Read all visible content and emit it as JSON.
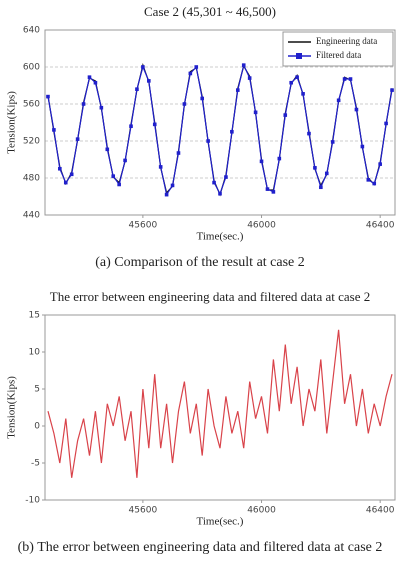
{
  "chart_data": [
    {
      "type": "line",
      "title": "Case 2 (45,301 ~ 46,500)",
      "caption": "(a)  Comparison of the result at case 2",
      "x_label": "Time(sec.)",
      "y_label": "Tension(Kips)",
      "x": [
        45280,
        45300,
        45320,
        45340,
        45360,
        45380,
        45400,
        45420,
        45440,
        45460,
        45480,
        45500,
        45520,
        45540,
        45560,
        45580,
        45600,
        45620,
        45640,
        45660,
        45680,
        45700,
        45720,
        45740,
        45760,
        45780,
        45800,
        45820,
        45840,
        45860,
        45880,
        45900,
        45920,
        45940,
        45960,
        45980,
        46000,
        46020,
        46040,
        46060,
        46080,
        46100,
        46120,
        46140,
        46160,
        46180,
        46200,
        46220,
        46240,
        46260,
        46280,
        46300,
        46320,
        46340,
        46360,
        46380,
        46400,
        46420,
        46440
      ],
      "series": [
        {
          "name": "Engineering data",
          "color": "#111111",
          "marker": "none",
          "values": [
            569,
            530,
            492,
            474,
            486,
            521,
            562,
            588,
            585,
            555,
            513,
            481,
            475,
            498,
            538,
            575,
            602,
            584,
            540,
            491,
            464,
            471,
            509,
            559,
            595,
            599,
            568,
            519,
            477,
            462,
            483,
            529,
            577,
            601,
            590,
            550,
            500,
            467,
            467,
            500,
            550,
            582,
            591,
            570,
            530,
            490,
            472,
            484,
            521,
            563,
            589,
            586,
            556,
            513,
            480,
            473,
            497,
            538,
            577
          ]
        },
        {
          "name": "Filtered data",
          "color": "#2020cc",
          "marker": "square",
          "values": [
            568,
            532,
            490,
            475,
            484,
            522,
            560,
            589,
            583,
            556,
            511,
            482,
            473,
            499,
            536,
            576,
            600,
            585,
            538,
            492,
            462,
            472,
            507,
            560,
            593,
            600,
            566,
            520,
            475,
            463,
            481,
            530,
            575,
            602,
            588,
            551,
            498,
            468,
            465,
            501,
            548,
            583,
            589,
            571,
            528,
            491,
            470,
            485,
            519,
            564,
            587,
            587,
            554,
            514,
            478,
            474,
            495,
            539,
            575
          ]
        }
      ],
      "xlim": [
        45270,
        46450
      ],
      "xticks": [
        45600,
        46000,
        46400
      ],
      "ylim": [
        440,
        640
      ],
      "yticks": [
        440,
        480,
        520,
        560,
        600,
        640
      ],
      "grid": true,
      "legend": "top-right"
    },
    {
      "type": "line",
      "title": "The error between engineering data and filtered data at case 2",
      "caption": "(b) The error between engineering data and filtered data at case 2",
      "x_label": "Time(sec.)",
      "y_label": "Tension(Kips)",
      "x": [
        45280,
        45300,
        45320,
        45340,
        45360,
        45380,
        45400,
        45420,
        45440,
        45460,
        45480,
        45500,
        45520,
        45540,
        45560,
        45580,
        45600,
        45620,
        45640,
        45660,
        45680,
        45700,
        45720,
        45740,
        45760,
        45780,
        45800,
        45820,
        45840,
        45860,
        45880,
        45900,
        45920,
        45940,
        45960,
        45980,
        46000,
        46020,
        46040,
        46060,
        46080,
        46100,
        46120,
        46140,
        46160,
        46180,
        46200,
        46220,
        46240,
        46260,
        46280,
        46300,
        46320,
        46340,
        46360,
        46380,
        46400,
        46420,
        46440
      ],
      "series": [
        {
          "color": "#d9434a",
          "marker": "none",
          "values": [
            2,
            -1,
            -5,
            1,
            -7,
            -2,
            1,
            -4,
            2,
            -5,
            3,
            0,
            4,
            -2,
            2,
            -7,
            5,
            -3,
            7,
            -3,
            3,
            -5,
            2,
            6,
            -1,
            3,
            -4,
            5,
            0,
            -3,
            4,
            -1,
            2,
            -3,
            6,
            1,
            4,
            -1,
            9,
            2,
            11,
            3,
            8,
            0,
            5,
            2,
            9,
            -1,
            6,
            13,
            3,
            7,
            0,
            5,
            -1,
            3,
            0,
            4,
            7
          ]
        }
      ],
      "xlim": [
        45270,
        46450
      ],
      "xticks": [
        45600,
        46000,
        46400
      ],
      "ylim": [
        -10,
        15
      ],
      "yticks": [
        -10,
        -5,
        0,
        5,
        10,
        15
      ],
      "grid": false
    }
  ]
}
